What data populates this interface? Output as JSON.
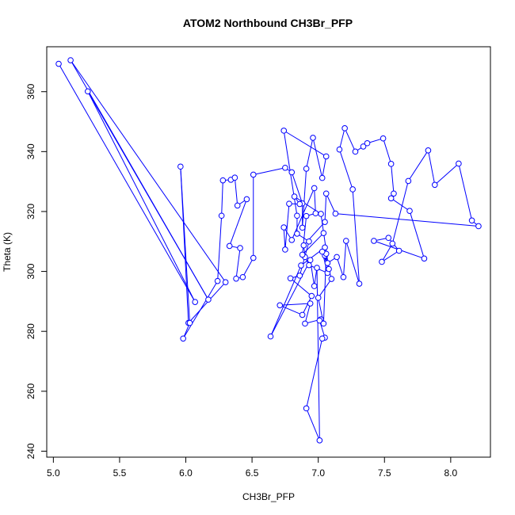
{
  "chart_data": {
    "type": "line",
    "title": "ATOM2 Northbound CH3Br_PFP",
    "xlabel": "CH3Br_PFP",
    "ylabel": "Theta (K)",
    "xlim": [
      4.95,
      8.3
    ],
    "ylim": [
      238,
      375
    ],
    "xticks": [
      "5.0",
      "5.5",
      "6.0",
      "6.5",
      "7.0",
      "7.5",
      "8.0"
    ],
    "yticks": [
      "240",
      "260",
      "280",
      "300",
      "320",
      "340",
      "360"
    ],
    "grid": false,
    "series": [
      {
        "color": "#0000ff",
        "marker": "open-circle",
        "points": [
          [
            5.04,
            369.3
          ],
          [
            6.07,
            289.8
          ],
          [
            5.26,
            360.1
          ],
          [
            6.17,
            290.6
          ],
          [
            5.13,
            370.5
          ],
          [
            6.3,
            296.4
          ],
          [
            6.02,
            282.8
          ],
          [
            5.96,
            335.0
          ],
          [
            6.03,
            282.8
          ],
          [
            5.98,
            277.6
          ],
          [
            6.24,
            296.8
          ],
          [
            6.27,
            318.6
          ],
          [
            6.28,
            330.4
          ],
          [
            6.34,
            330.6
          ],
          [
            6.37,
            331.3
          ],
          [
            6.39,
            322.0
          ],
          [
            6.46,
            324.1
          ],
          [
            6.33,
            308.5
          ],
          [
            6.41,
            307.8
          ],
          [
            6.38,
            297.6
          ],
          [
            6.43,
            298.1
          ],
          [
            6.51,
            304.5
          ],
          [
            6.51,
            332.3
          ],
          [
            6.75,
            334.6
          ],
          [
            6.8,
            333.1
          ],
          [
            6.88,
            322.7
          ],
          [
            6.88,
            314.6
          ],
          [
            6.91,
            334.3
          ],
          [
            6.96,
            344.6
          ],
          [
            7.03,
            331.2
          ],
          [
            7.06,
            338.4
          ],
          [
            6.74,
            347.0
          ],
          [
            6.84,
            318.6
          ],
          [
            6.84,
            312.6
          ],
          [
            6.93,
            310.0
          ],
          [
            6.86,
            298.6
          ],
          [
            6.79,
            297.7
          ],
          [
            6.95,
            291.8
          ],
          [
            6.88,
            285.5
          ],
          [
            6.71,
            288.7
          ],
          [
            6.94,
            289.3
          ],
          [
            6.9,
            282.6
          ],
          [
            7.02,
            284.0
          ],
          [
            7.01,
            283.6
          ],
          [
            7.05,
            277.9
          ],
          [
            7.03,
            277.6
          ],
          [
            6.91,
            254.3
          ],
          [
            7.01,
            243.6
          ],
          [
            6.99,
            301.2
          ],
          [
            6.97,
            295.1
          ],
          [
            6.94,
            303.8
          ],
          [
            6.64,
            278.3
          ],
          [
            6.87,
            302.0
          ],
          [
            7.05,
            308.0
          ],
          [
            7.05,
            305.3
          ],
          [
            7.1,
            297.5
          ],
          [
            7.0,
            291.2
          ],
          [
            7.04,
            282.6
          ],
          [
            7.06,
            305.9
          ],
          [
            7.07,
            302.8
          ],
          [
            7.14,
            304.8
          ],
          [
            7.19,
            298.1
          ],
          [
            7.21,
            310.2
          ],
          [
            7.31,
            295.9
          ],
          [
            7.26,
            327.4
          ],
          [
            7.16,
            340.7
          ],
          [
            7.2,
            347.8
          ],
          [
            7.28,
            340.0
          ],
          [
            7.34,
            341.7
          ],
          [
            7.37,
            342.8
          ],
          [
            7.49,
            344.4
          ],
          [
            7.55,
            335.9
          ],
          [
            7.57,
            326.0
          ],
          [
            7.55,
            324.4
          ],
          [
            7.69,
            320.2
          ],
          [
            7.8,
            304.3
          ],
          [
            7.42,
            310.2
          ],
          [
            7.53,
            311.2
          ],
          [
            7.61,
            306.9
          ],
          [
            7.48,
            303.2
          ],
          [
            7.56,
            309.3
          ],
          [
            7.68,
            330.2
          ],
          [
            7.83,
            340.4
          ],
          [
            7.88,
            328.9
          ],
          [
            8.06,
            336.0
          ],
          [
            8.16,
            317.0
          ],
          [
            8.21,
            315.1
          ],
          [
            7.13,
            319.3
          ],
          [
            7.06,
            326.0
          ],
          [
            7.05,
            316.5
          ],
          [
            6.89,
            308.7
          ],
          [
            6.9,
            304.8
          ],
          [
            6.93,
            302.1
          ],
          [
            7.07,
            299.5
          ],
          [
            7.03,
            306.6
          ],
          [
            7.08,
            300.8
          ],
          [
            7.02,
            319.2
          ],
          [
            6.82,
            325.0
          ],
          [
            6.86,
            322.5
          ],
          [
            6.78,
            322.6
          ],
          [
            6.75,
            307.3
          ],
          [
            6.74,
            314.7
          ],
          [
            6.8,
            310.5
          ],
          [
            6.97,
            327.8
          ],
          [
            6.98,
            319.4
          ],
          [
            6.91,
            318.5
          ],
          [
            6.88,
            305.6
          ],
          [
            7.04,
            312.8
          ]
        ]
      }
    ]
  }
}
